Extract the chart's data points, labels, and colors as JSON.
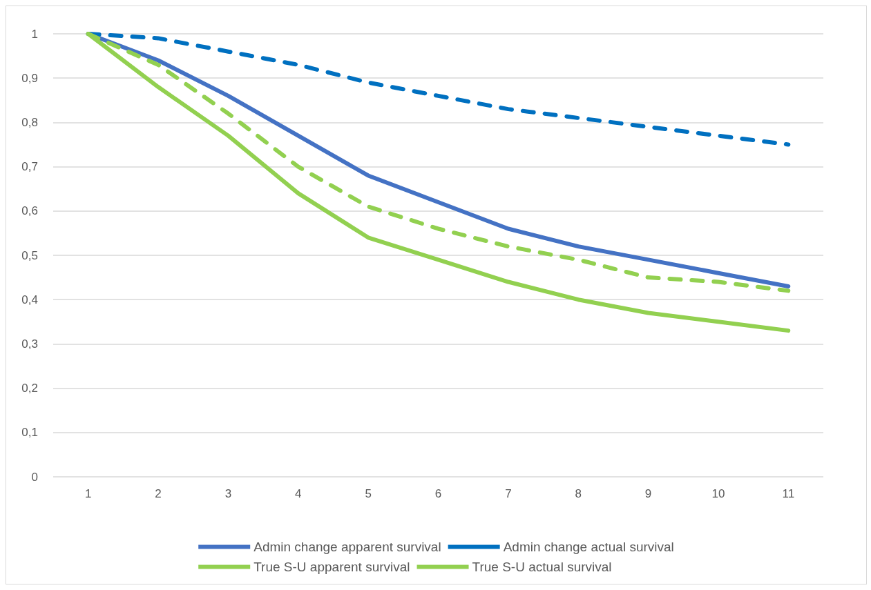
{
  "chart_data": {
    "type": "line",
    "categories": [
      "1",
      "2",
      "3",
      "4",
      "5",
      "6",
      "7",
      "8",
      "9",
      "10",
      "11"
    ],
    "ylim": [
      0,
      1
    ],
    "yticks": [
      0,
      {
        "value": 0.1,
        "label": "0,1"
      },
      {
        "value": 0.2,
        "label": "0,2"
      },
      {
        "value": 0.3,
        "label": "0,3"
      },
      {
        "value": 0.4,
        "label": "0,4"
      },
      {
        "value": 0.5,
        "label": "0,5"
      },
      {
        "value": 0.6,
        "label": "0,6"
      },
      {
        "value": 0.7,
        "label": "0,7"
      },
      {
        "value": 0.8,
        "label": "0,8"
      },
      {
        "value": 0.9,
        "label": "0,9"
      },
      1
    ],
    "grid": "y",
    "legend": "bottom",
    "marker": "none",
    "series": [
      {
        "name": "Admin change apparent survival",
        "color": "#4472c4",
        "line_style": "solid",
        "values": [
          1,
          0.94,
          0.86,
          0.77,
          0.68,
          0.62,
          0.56,
          0.52,
          0.49,
          0.46,
          0.43
        ]
      },
      {
        "name": "Admin change actual survival",
        "color": "#0070c0",
        "line_style": "dashed",
        "values": [
          1,
          0.99,
          0.96,
          0.93,
          0.89,
          0.86,
          0.83,
          0.81,
          0.79,
          0.77,
          0.75
        ]
      },
      {
        "name": "True S-U apparent survival",
        "color": "#92d050",
        "line_style": "solid",
        "values": [
          1,
          0.88,
          0.77,
          0.64,
          0.54,
          0.49,
          0.44,
          0.4,
          0.37,
          0.35,
          0.33
        ]
      },
      {
        "name": "True S-U actual survival",
        "color": "#92d050",
        "line_style": "dashed",
        "values": [
          1,
          0.93,
          0.82,
          0.7,
          0.61,
          0.56,
          0.52,
          0.49,
          0.45,
          0.44,
          0.42
        ]
      }
    ]
  }
}
